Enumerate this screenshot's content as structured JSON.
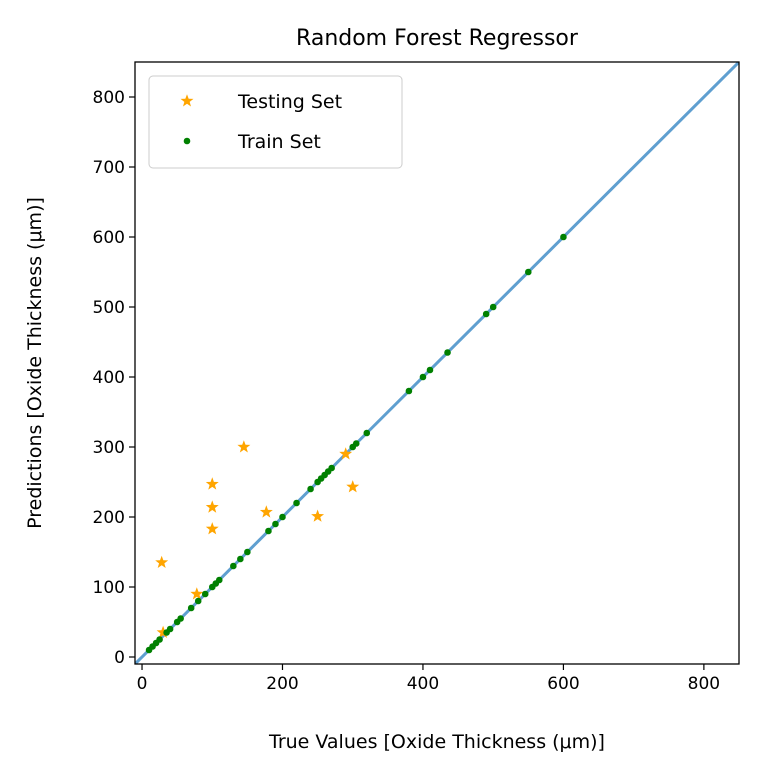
{
  "chart_data": {
    "type": "scatter",
    "title": "Random Forest Regressor",
    "xlabel": "True Values [Oxide Thickness (μm)]",
    "ylabel": "Predictions [Oxide Thickness (μm)]",
    "xlim": [
      -10,
      850
    ],
    "ylim": [
      -10,
      850
    ],
    "xticks": [
      0,
      200,
      400,
      600,
      800
    ],
    "yticks": [
      0,
      100,
      200,
      300,
      400,
      500,
      600,
      700,
      800
    ],
    "grid": false,
    "legend_position": "upper-left",
    "identity_line": {
      "from": [
        -10,
        -10
      ],
      "to": [
        850,
        850
      ],
      "color": "#5f9fd0"
    },
    "series": [
      {
        "name": "Testing Set",
        "marker": "star",
        "color": "#ffa500",
        "points": [
          [
            28,
            135
          ],
          [
            30,
            35
          ],
          [
            78,
            90
          ],
          [
            100,
            183
          ],
          [
            100,
            214
          ],
          [
            100,
            247
          ],
          [
            145,
            300
          ],
          [
            177,
            207
          ],
          [
            250,
            201
          ],
          [
            290,
            290
          ],
          [
            300,
            243
          ]
        ]
      },
      {
        "name": "Train Set",
        "marker": "dot",
        "color": "#008000",
        "points": [
          [
            10,
            10
          ],
          [
            15,
            15
          ],
          [
            20,
            20
          ],
          [
            25,
            25
          ],
          [
            35,
            35
          ],
          [
            40,
            40
          ],
          [
            50,
            50
          ],
          [
            55,
            55
          ],
          [
            70,
            70
          ],
          [
            80,
            80
          ],
          [
            90,
            90
          ],
          [
            100,
            100
          ],
          [
            105,
            105
          ],
          [
            110,
            110
          ],
          [
            130,
            130
          ],
          [
            140,
            140
          ],
          [
            150,
            150
          ],
          [
            180,
            180
          ],
          [
            190,
            190
          ],
          [
            200,
            200
          ],
          [
            220,
            220
          ],
          [
            240,
            240
          ],
          [
            250,
            250
          ],
          [
            255,
            255
          ],
          [
            260,
            260
          ],
          [
            265,
            265
          ],
          [
            270,
            270
          ],
          [
            300,
            300
          ],
          [
            305,
            305
          ],
          [
            320,
            320
          ],
          [
            380,
            380
          ],
          [
            400,
            400
          ],
          [
            410,
            410
          ],
          [
            435,
            435
          ],
          [
            490,
            490
          ],
          [
            500,
            500
          ],
          [
            550,
            550
          ],
          [
            600,
            600
          ]
        ]
      }
    ]
  }
}
